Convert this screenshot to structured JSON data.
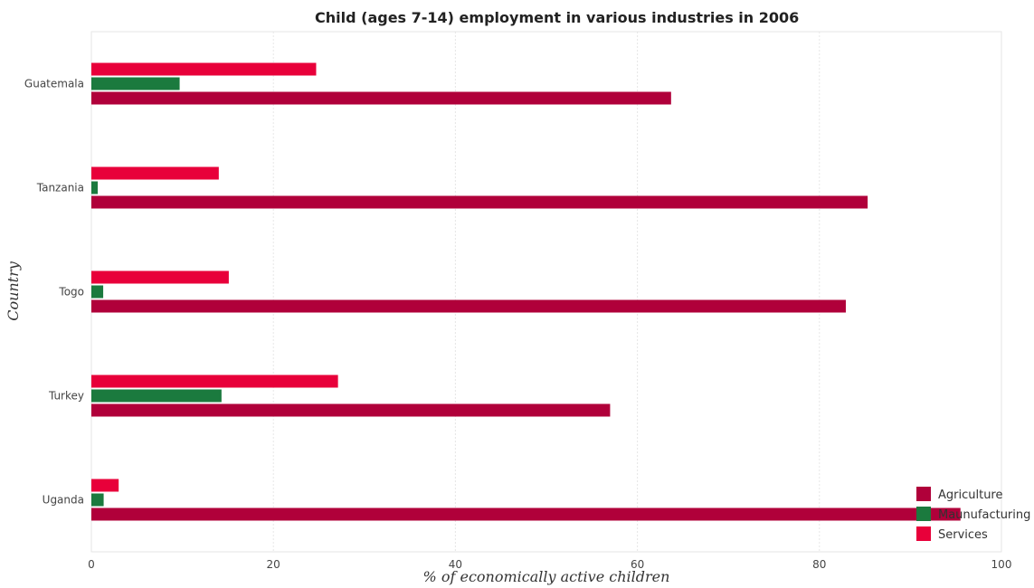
{
  "chart_data": {
    "type": "bar",
    "orientation": "horizontal",
    "title": "Child (ages 7-14) employment in various industries in 2006",
    "xlabel": "% of economically active children",
    "ylabel": "Country",
    "xlim": [
      0,
      100
    ],
    "xticks": [
      "0",
      "20",
      "40",
      "60",
      "80",
      "100"
    ],
    "grid": true,
    "legend_position": "bottom-right",
    "categories": [
      "Guatemala",
      "Tanzania",
      "Togo",
      "Turkey",
      "Uganda"
    ],
    "series": [
      {
        "name": "Agriculture",
        "color": "#b0003a",
        "values": [
          63.7,
          85.3,
          82.9,
          57.0,
          95.5
        ]
      },
      {
        "name": "Maunufacturing",
        "color": "#1b7a3e",
        "values": [
          9.7,
          0.7,
          1.3,
          14.3,
          1.35
        ]
      },
      {
        "name": "Services",
        "color": "#e8003a",
        "values": [
          24.7,
          14.0,
          15.1,
          27.1,
          3.0
        ]
      }
    ]
  }
}
